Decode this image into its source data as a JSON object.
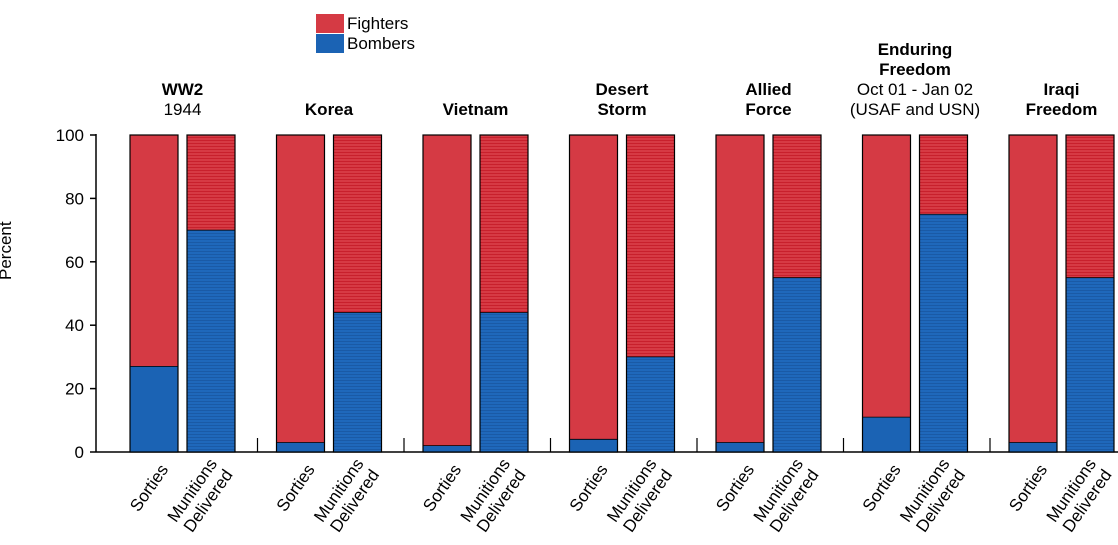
{
  "legend": [
    {
      "label": "Fighters",
      "color": "#d53a44"
    },
    {
      "label": "Bombers",
      "color": "#1b63b4"
    }
  ],
  "groups": [
    {
      "title_bold": [
        "WW2"
      ],
      "title_normal": [
        "1944"
      ]
    },
    {
      "title_bold": [
        "Korea"
      ],
      "title_normal": []
    },
    {
      "title_bold": [
        "Vietnam"
      ],
      "title_normal": []
    },
    {
      "title_bold": [
        "Desert",
        "Storm"
      ],
      "title_normal": []
    },
    {
      "title_bold": [
        "Allied",
        "Force"
      ],
      "title_normal": []
    },
    {
      "title_bold": [
        "Enduring",
        "Freedom"
      ],
      "title_normal": [
        "Oct 01 - Jan 02",
        "(USAF and USN)"
      ]
    },
    {
      "title_bold": [
        "Iraqi",
        "Freedom"
      ],
      "title_normal": []
    }
  ],
  "chart_data": {
    "type": "bar",
    "stacked": true,
    "ylabel": "Percent",
    "ylim": [
      0,
      100
    ],
    "yticks": [
      0,
      20,
      40,
      60,
      80,
      100
    ],
    "bar_labels": [
      [
        "Sorties"
      ],
      [
        "Munitions",
        "Delivered"
      ]
    ],
    "categories": [
      "WW2 1944",
      "Korea",
      "Vietnam",
      "Desert Storm",
      "Allied Force",
      "Enduring Freedom Oct 01 - Jan 02 (USAF and USN)",
      "Iraqi Freedom"
    ],
    "series": [
      {
        "name": "Bombers",
        "color": "#1b63b4",
        "sorties": [
          27,
          3,
          2,
          4,
          3,
          11,
          3
        ],
        "munitions_delivered": [
          70,
          44,
          44,
          30,
          55,
          75,
          55
        ]
      },
      {
        "name": "Fighters",
        "color": "#d53a44",
        "sorties": [
          73,
          97,
          98,
          96,
          97,
          89,
          97
        ],
        "munitions_delivered": [
          30,
          56,
          56,
          70,
          45,
          25,
          45
        ]
      }
    ],
    "legend_position": "top"
  }
}
